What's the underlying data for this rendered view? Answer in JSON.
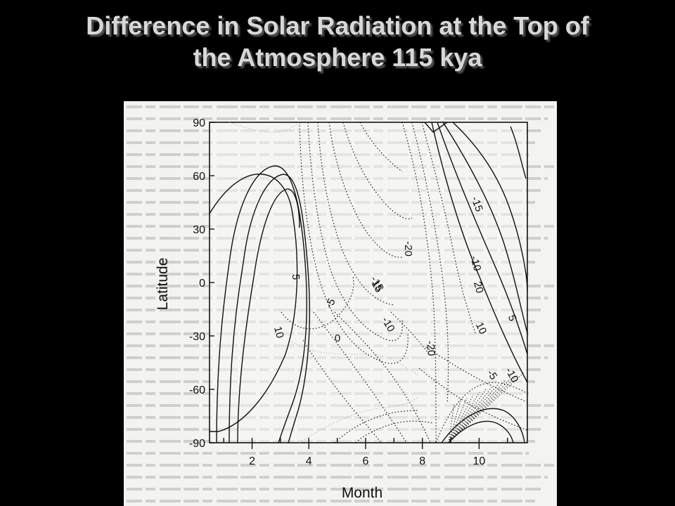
{
  "slide": {
    "title_line1": "Difference in Solar Radiation at the Top of",
    "title_line2": "the Atmosphere 115 kya"
  },
  "chart_data": {
    "type": "contour",
    "title": "Difference in Solar Radiation at the Top of the Atmosphere 115 kya",
    "xlabel": "Month",
    "ylabel": "Latitude",
    "xlim": [
      0.5,
      11.7
    ],
    "ylim": [
      -90,
      90
    ],
    "x_ticks": [
      "2",
      "4",
      "6",
      "8",
      "10"
    ],
    "y_ticks": [
      "90",
      "60",
      "30",
      "0",
      "-30",
      "-60",
      "-90"
    ],
    "contour_labels": [
      "5",
      "10",
      "-5",
      "0",
      "-20",
      "-15",
      "-10",
      "-20",
      "-15",
      "-10",
      "20",
      "10",
      "5",
      "-10",
      "15",
      "-5"
    ],
    "line_styles": {
      "positive": "solid",
      "negative": "dotted",
      "zero": "dotted"
    },
    "colors": {
      "line": "#111111",
      "background": "#f3f3f1"
    }
  }
}
